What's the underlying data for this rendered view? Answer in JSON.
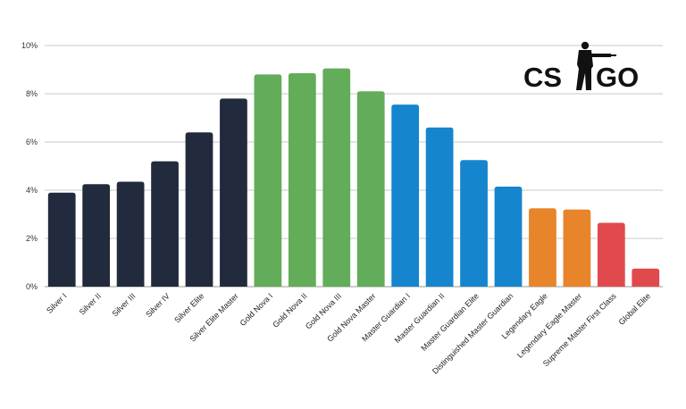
{
  "chart_data": {
    "type": "bar",
    "title": "",
    "xlabel": "",
    "ylabel": "",
    "ylim": [
      0,
      10
    ],
    "yticks": [
      0,
      2,
      4,
      6,
      8,
      10
    ],
    "ytick_labels": [
      "0%",
      "2%",
      "4%",
      "6%",
      "8%",
      "10%"
    ],
    "grid": "horizontal",
    "categories": [
      "Silver I",
      "Silver II",
      "Silver III",
      "Silver IV",
      "Silver Elite",
      "Silver Elite Master",
      "Gold Nova I",
      "Gold Nova II",
      "Gold Nova III",
      "Gold Nova Master",
      "Master Guardian I",
      "Master Guardian II",
      "Master Guardian Elite",
      "Distinguished Master Guardian",
      "Legendary Eagle",
      "Legendary Eagle Master",
      "Supreme Master First Class",
      "Global Elite"
    ],
    "values": [
      3.9,
      4.25,
      4.35,
      5.2,
      6.4,
      7.8,
      8.8,
      8.85,
      9.05,
      8.1,
      7.55,
      6.6,
      5.25,
      4.15,
      3.25,
      3.2,
      2.65,
      0.75
    ],
    "colors": [
      "#222b3d",
      "#222b3d",
      "#222b3d",
      "#222b3d",
      "#222b3d",
      "#222b3d",
      "#63ac59",
      "#63ac59",
      "#63ac59",
      "#63ac59",
      "#1585cd",
      "#1585cd",
      "#1585cd",
      "#1585cd",
      "#e8842a",
      "#e8842a",
      "#e04a4d",
      "#e04a4d"
    ]
  },
  "logo": {
    "text_left": "CS",
    "text_right": "GO",
    "icon": "soldier-silhouette-icon"
  },
  "style": {
    "grid_color": "#c8c8c8",
    "baseline_color": "#999999"
  }
}
